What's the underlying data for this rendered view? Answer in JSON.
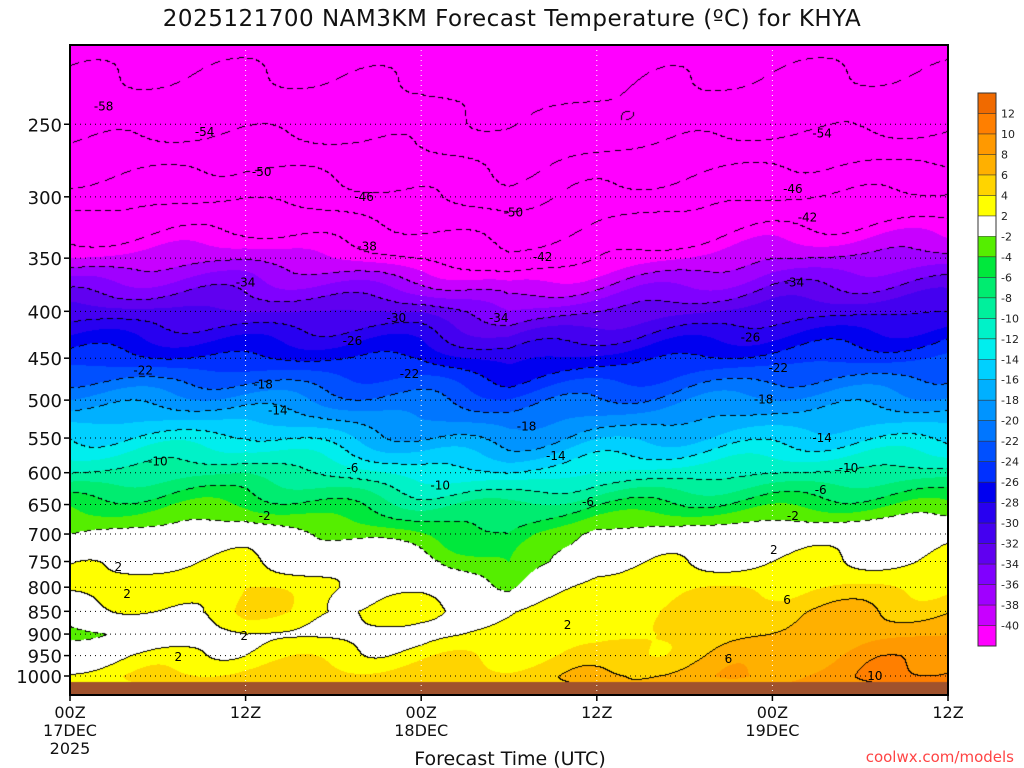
{
  "chart_data": {
    "type": "heatmap",
    "title": "2025121700 NAM3KM Forecast Temperature (ºC) for KHYA",
    "xlabel": "Forecast Time (UTC)",
    "ylabel": "",
    "x_range_hours": [
      0,
      60
    ],
    "y_range_hpa": [
      205,
      1050
    ],
    "y_scale": "log",
    "x_ticks": [
      {
        "hour": 0,
        "lines": [
          "00Z",
          "17DEC",
          "2025"
        ]
      },
      {
        "hour": 12,
        "lines": [
          "12Z"
        ]
      },
      {
        "hour": 24,
        "lines": [
          "00Z",
          "18DEC"
        ]
      },
      {
        "hour": 36,
        "lines": [
          "12Z"
        ]
      },
      {
        "hour": 48,
        "lines": [
          "00Z",
          "19DEC"
        ]
      },
      {
        "hour": 60,
        "lines": [
          "12Z"
        ]
      }
    ],
    "y_ticks": [
      "250",
      "300",
      "350",
      "400",
      "450",
      "500",
      "550",
      "600",
      "650",
      "700",
      "750",
      "800",
      "850",
      "900",
      "950",
      "1000"
    ],
    "levels_hpa": [
      200,
      250,
      300,
      350,
      400,
      450,
      500,
      550,
      600,
      650,
      700,
      750,
      800,
      850,
      900,
      950,
      1000,
      1050
    ],
    "profiles": [
      {
        "hour": 0,
        "temps": [
          -60,
          -56,
          -48,
          -40,
          -31,
          -25,
          -19,
          -14,
          -10,
          -5,
          -2,
          1,
          3,
          0,
          -3,
          1,
          3,
          3
        ]
      },
      {
        "hour": 12,
        "temps": [
          -60,
          -55,
          -46,
          -38,
          -32,
          -26,
          -19,
          -13,
          -8,
          -4,
          0,
          2,
          4,
          4,
          2,
          3,
          5,
          5
        ]
      },
      {
        "hour": 24,
        "temps": [
          -61,
          -56,
          -50,
          -42,
          -32,
          -26,
          -22,
          -18,
          -13,
          -8,
          -4,
          0,
          1,
          2,
          1,
          3,
          5,
          5
        ]
      },
      {
        "hour": 30,
        "temps": [
          -62,
          -58,
          -52,
          -45,
          -36,
          -29,
          -23,
          -19,
          -14,
          -8,
          -6,
          -5,
          -2,
          2,
          3,
          4,
          5,
          5
        ]
      },
      {
        "hour": 36,
        "temps": [
          -61,
          -57,
          -49,
          -42,
          -34,
          -27,
          -22,
          -17,
          -12,
          -6,
          -1,
          1,
          3,
          3,
          3,
          4,
          6,
          6
        ]
      },
      {
        "hour": 48,
        "temps": [
          -60,
          -55,
          -46,
          -38,
          -31,
          -25,
          -19,
          -15,
          -10,
          -5,
          0,
          2,
          4,
          6,
          6,
          7,
          8,
          8
        ]
      },
      {
        "hour": 60,
        "temps": [
          -60,
          -55,
          -45,
          -37,
          -30,
          -24,
          -19,
          -14,
          -9,
          -4,
          1,
          2,
          4,
          6,
          8,
          10,
          11,
          11
        ]
      }
    ],
    "ground_pressure_hpa": 1013,
    "contour_interval": 4,
    "contour_labels": [
      {
        "hour": 2.3,
        "p": 239,
        "text": "-58"
      },
      {
        "hour": 9.2,
        "p": 255,
        "text": "-54"
      },
      {
        "hour": 13.1,
        "p": 282,
        "text": "-50"
      },
      {
        "hour": 20.1,
        "p": 300,
        "text": "-46"
      },
      {
        "hour": 20.3,
        "p": 340,
        "text": "-38"
      },
      {
        "hour": 12.0,
        "p": 372,
        "text": "-34"
      },
      {
        "hour": 22.3,
        "p": 407,
        "text": "-30"
      },
      {
        "hour": 19.3,
        "p": 431,
        "text": "-26"
      },
      {
        "hour": 5.0,
        "p": 464,
        "text": "-22"
      },
      {
        "hour": 13.2,
        "p": 481,
        "text": "-18"
      },
      {
        "hour": 14.2,
        "p": 513,
        "text": "-14"
      },
      {
        "hour": 6.0,
        "p": 583,
        "text": "-10"
      },
      {
        "hour": 19.3,
        "p": 593,
        "text": "-6"
      },
      {
        "hour": 13.3,
        "p": 669,
        "text": "-2"
      },
      {
        "hour": 3.3,
        "p": 760,
        "text": "2"
      },
      {
        "hour": 3.9,
        "p": 814,
        "text": "2"
      },
      {
        "hour": 11.9,
        "p": 904,
        "text": "2"
      },
      {
        "hour": 7.4,
        "p": 953,
        "text": "2"
      },
      {
        "hour": 30.3,
        "p": 312,
        "text": "-50"
      },
      {
        "hour": 32.3,
        "p": 349,
        "text": "-42"
      },
      {
        "hour": 29.3,
        "p": 407,
        "text": "-34"
      },
      {
        "hour": 23.2,
        "p": 468,
        "text": "-22"
      },
      {
        "hour": 31.2,
        "p": 534,
        "text": "-18"
      },
      {
        "hour": 33.2,
        "p": 575,
        "text": "-14"
      },
      {
        "hour": 25.3,
        "p": 620,
        "text": "-10"
      },
      {
        "hour": 35.4,
        "p": 646,
        "text": "-6"
      },
      {
        "hour": 34.0,
        "p": 880,
        "text": "2"
      },
      {
        "hour": 51.4,
        "p": 256,
        "text": "-54"
      },
      {
        "hour": 49.4,
        "p": 294,
        "text": "-46"
      },
      {
        "hour": 50.4,
        "p": 316,
        "text": "-42"
      },
      {
        "hour": 49.5,
        "p": 372,
        "text": "-34"
      },
      {
        "hour": 46.5,
        "p": 427,
        "text": "-26"
      },
      {
        "hour": 48.4,
        "p": 461,
        "text": "-22"
      },
      {
        "hour": 47.4,
        "p": 499,
        "text": "-18"
      },
      {
        "hour": 51.4,
        "p": 550,
        "text": "-14"
      },
      {
        "hour": 53.2,
        "p": 593,
        "text": "-10"
      },
      {
        "hour": 51.3,
        "p": 627,
        "text": "-6"
      },
      {
        "hour": 49.4,
        "p": 669,
        "text": "-2"
      },
      {
        "hour": 48.1,
        "p": 729,
        "text": "2"
      },
      {
        "hour": 49.0,
        "p": 826,
        "text": "6"
      },
      {
        "hour": 45.0,
        "p": 958,
        "text": "6"
      },
      {
        "hour": 55.0,
        "p": 1000,
        "text": "10"
      }
    ],
    "colorbar": {
      "labels": [
        "12",
        "10",
        "8",
        "6",
        "4",
        "2",
        "-2",
        "-4",
        "-6",
        "-8",
        "-10",
        "-12",
        "-14",
        "-16",
        "-18",
        "-20",
        "-22",
        "-24",
        "-26",
        "-28",
        "-30",
        "-32",
        "-34",
        "-36",
        "-38",
        "-40"
      ],
      "boundaries": [
        12,
        10,
        8,
        6,
        4,
        2,
        -2,
        -4,
        -6,
        -8,
        -10,
        -12,
        -14,
        -16,
        -18,
        -20,
        -22,
        -24,
        -26,
        -28,
        -30,
        -32,
        -34,
        -36,
        -38,
        -40
      ],
      "colors": [
        "#f06a00",
        "#ff7f00",
        "#ff9900",
        "#ffb000",
        "#ffd400",
        "#ffff00",
        "#ffffff",
        "#55ee00",
        "#00e83c",
        "#00ec70",
        "#00f09c",
        "#00f2c8",
        "#00eeee",
        "#00d0ff",
        "#00b0ff",
        "#0094ff",
        "#0076ff",
        "#0050ff",
        "#0030ff",
        "#0000f0",
        "#2800f0",
        "#4400f0",
        "#6000f0",
        "#8000ff",
        "#a000ff",
        "#c800ff",
        "#ff00ff"
      ]
    },
    "ground_color": "#a0522d"
  },
  "credit": "coolwx.com/models"
}
